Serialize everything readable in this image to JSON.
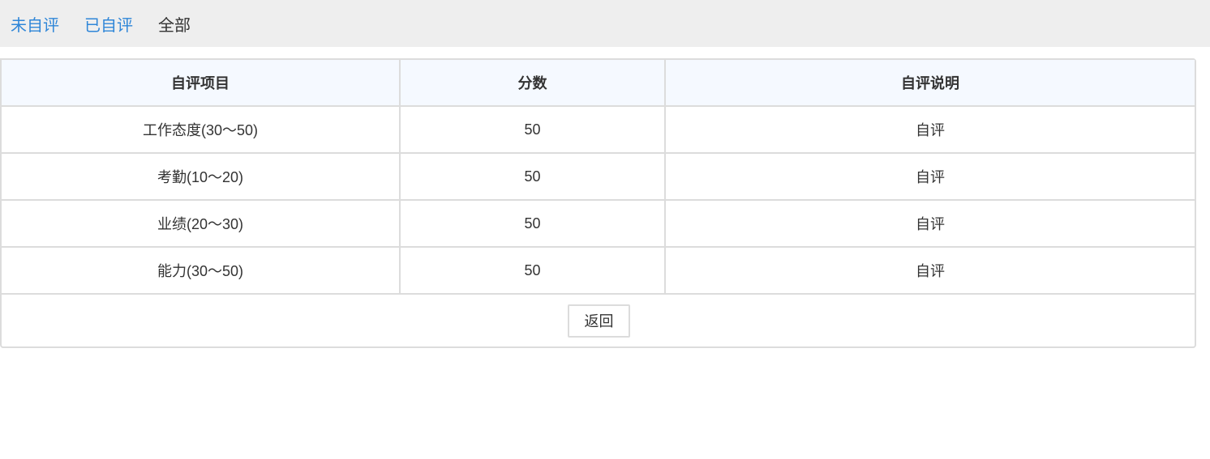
{
  "tabs": [
    {
      "label": "未自评"
    },
    {
      "label": "已自评"
    },
    {
      "label": "全部"
    }
  ],
  "active_tab": "全部",
  "table": {
    "headers": [
      "自评项目",
      "分数",
      "自评说明"
    ],
    "rows": [
      [
        "工作态度(30～50)",
        "50",
        "自评"
      ],
      [
        "考勤(10～20)",
        "50",
        "自评"
      ],
      [
        "业绩(20～30)",
        "50",
        "自评"
      ],
      [
        "能力(30～50)",
        "50",
        "自评"
      ]
    ]
  },
  "back_button": "返回",
  "colors": {
    "link": "#2f86d8",
    "header_bg": "#f5f9ff",
    "topbar_bg": "#eeeeee"
  }
}
